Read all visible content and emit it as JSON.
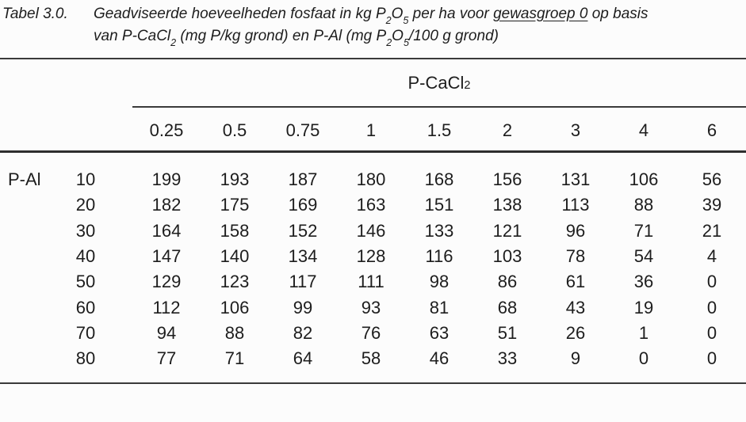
{
  "page": {
    "background": "#fcfcfc",
    "text_color": "#1d1d1d",
    "line_color": "#3a3a3a"
  },
  "caption": {
    "label": "Tabel 3.0.",
    "line1": {
      "p1": "Geadviseerde hoeveelheden fosfaat in kg P",
      "sub1": "2",
      "p2": "O",
      "sub2": "5",
      "p3": " per ha voor ",
      "underlined": "gewasgroep 0",
      "p4": " op basis"
    },
    "line2": {
      "p1": "van P-CaCl",
      "sub1": "2",
      "p2": " (mg P/kg grond) en P-Al (mg P",
      "sub2": "2",
      "p3": "O",
      "sub3": "5",
      "p4": "/100 g grond)"
    }
  },
  "table": {
    "group_header": {
      "p1": "P-CaCl",
      "sub": "2"
    },
    "col_headers": [
      "0.25",
      "0.5",
      "0.75",
      "1",
      "1.5",
      "2",
      "3",
      "4",
      "6"
    ],
    "row_axis_label": "P-Al",
    "rows": [
      {
        "label": "10",
        "values": [
          "199",
          "193",
          "187",
          "180",
          "168",
          "156",
          "131",
          "106",
          "56"
        ]
      },
      {
        "label": "20",
        "values": [
          "182",
          "175",
          "169",
          "163",
          "151",
          "138",
          "113",
          "88",
          "39"
        ]
      },
      {
        "label": "30",
        "values": [
          "164",
          "158",
          "152",
          "146",
          "133",
          "121",
          "96",
          "71",
          "21"
        ]
      },
      {
        "label": "40",
        "values": [
          "147",
          "140",
          "134",
          "128",
          "116",
          "103",
          "78",
          "54",
          "4"
        ]
      },
      {
        "label": "50",
        "values": [
          "129",
          "123",
          "117",
          "111",
          "98",
          "86",
          "61",
          "36",
          "0"
        ]
      },
      {
        "label": "60",
        "values": [
          "112",
          "106",
          "99",
          "93",
          "81",
          "68",
          "43",
          "19",
          "0"
        ]
      },
      {
        "label": "70",
        "values": [
          "94",
          "88",
          "82",
          "76",
          "63",
          "51",
          "26",
          "1",
          "0"
        ]
      },
      {
        "label": "80",
        "values": [
          "77",
          "71",
          "64",
          "58",
          "46",
          "33",
          "9",
          "0",
          "0"
        ]
      }
    ]
  }
}
